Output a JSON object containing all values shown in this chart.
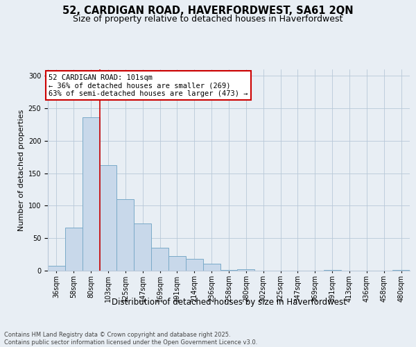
{
  "title_line1": "52, CARDIGAN ROAD, HAVERFORDWEST, SA61 2QN",
  "title_line2": "Size of property relative to detached houses in Haverfordwest",
  "xlabel": "Distribution of detached houses by size in Haverfordwest",
  "ylabel": "Number of detached properties",
  "categories": [
    "36sqm",
    "58sqm",
    "80sqm",
    "103sqm",
    "125sqm",
    "147sqm",
    "169sqm",
    "191sqm",
    "214sqm",
    "236sqm",
    "258sqm",
    "280sqm",
    "302sqm",
    "325sqm",
    "347sqm",
    "369sqm",
    "391sqm",
    "413sqm",
    "436sqm",
    "458sqm",
    "480sqm"
  ],
  "values": [
    7,
    66,
    236,
    163,
    110,
    73,
    35,
    22,
    18,
    11,
    1,
    2,
    0,
    0,
    0,
    0,
    1,
    0,
    0,
    0,
    1
  ],
  "bar_color": "#c8d8ea",
  "bar_edge_color": "#7aaac8",
  "vline_color": "#cc0000",
  "vline_x": 2.5,
  "annotation_text": "52 CARDIGAN ROAD: 101sqm\n← 36% of detached houses are smaller (269)\n63% of semi-detached houses are larger (473) →",
  "annotation_box_facecolor": "#ffffff",
  "annotation_box_edgecolor": "#cc0000",
  "ylim": [
    0,
    310
  ],
  "yticks": [
    0,
    50,
    100,
    150,
    200,
    250,
    300
  ],
  "background_color": "#e8eef4",
  "grid_color": "#b8c8d8",
  "footer_line1": "Contains HM Land Registry data © Crown copyright and database right 2025.",
  "footer_line2": "Contains public sector information licensed under the Open Government Licence v3.0.",
  "title_fontsize": 10.5,
  "subtitle_fontsize": 9,
  "ylabel_fontsize": 8,
  "xlabel_fontsize": 8.5,
  "tick_fontsize": 7,
  "annotation_fontsize": 7.5,
  "footer_fontsize": 6
}
